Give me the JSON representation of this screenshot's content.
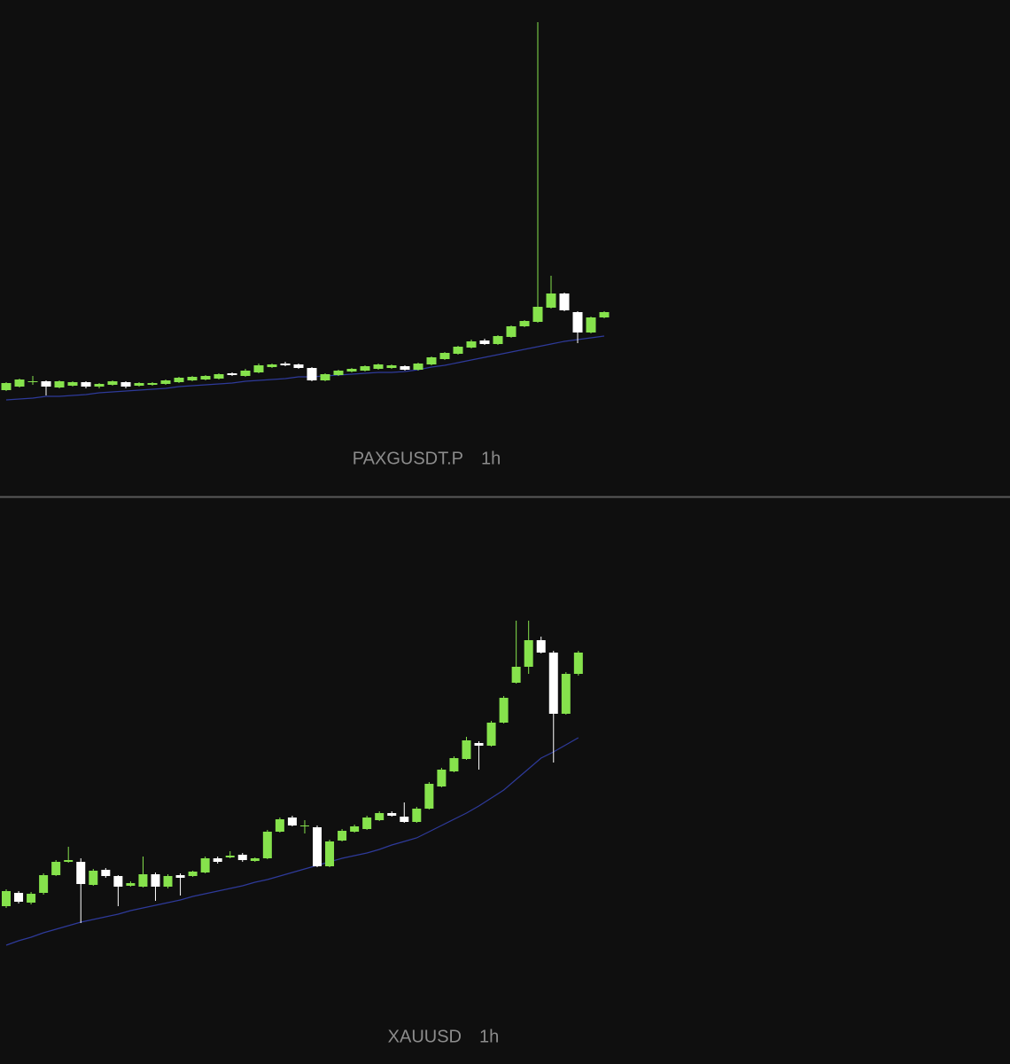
{
  "chart_data": [
    {
      "type": "candlestick",
      "title": "PAXGUSDT.P",
      "interval": "1h",
      "up_color": "#86e24c",
      "down_color": "#ffffff",
      "ma_color": "#2e3a9a",
      "ylim": [
        0,
        560
      ],
      "ohlc": [
        [
          120,
          129,
          119,
          128
        ],
        [
          124,
          133,
          123,
          132
        ],
        [
          130,
          136,
          126,
          130
        ],
        [
          130,
          131,
          114,
          124
        ],
        [
          123,
          131,
          122,
          130
        ],
        [
          125,
          130,
          124,
          129
        ],
        [
          129,
          130,
          122,
          124
        ],
        [
          124,
          128,
          122,
          127
        ],
        [
          126,
          131,
          125,
          130
        ],
        [
          129,
          130,
          122,
          124
        ],
        [
          125,
          129,
          124,
          128
        ],
        [
          126,
          129,
          125,
          128
        ],
        [
          127,
          132,
          126,
          131
        ],
        [
          129,
          135,
          128,
          134
        ],
        [
          131,
          136,
          130,
          135
        ],
        [
          132,
          137,
          131,
          136
        ],
        [
          133,
          139,
          132,
          138
        ],
        [
          139,
          140,
          136,
          137
        ],
        [
          136,
          144,
          135,
          142
        ],
        [
          140,
          150,
          139,
          148
        ],
        [
          146,
          150,
          145,
          149
        ],
        [
          150,
          152,
          147,
          148
        ],
        [
          149,
          150,
          144,
          145
        ],
        [
          145,
          146,
          130,
          131
        ],
        [
          131,
          139,
          130,
          138
        ],
        [
          137,
          143,
          136,
          142
        ],
        [
          141,
          145,
          140,
          144
        ],
        [
          142,
          148,
          141,
          147
        ],
        [
          144,
          150,
          143,
          149
        ],
        [
          145,
          149,
          144,
          148
        ],
        [
          147,
          148,
          142,
          143
        ],
        [
          143,
          151,
          142,
          150
        ],
        [
          149,
          158,
          148,
          157
        ],
        [
          155,
          163,
          154,
          162
        ],
        [
          161,
          170,
          160,
          169
        ],
        [
          168,
          177,
          167,
          175
        ],
        [
          176,
          178,
          171,
          172
        ],
        [
          172,
          182,
          171,
          181
        ],
        [
          180,
          193,
          179,
          192
        ],
        [
          192,
          199,
          191,
          198
        ],
        [
          197,
          535,
          196,
          214
        ],
        [
          213,
          249,
          212,
          229
        ],
        [
          229,
          230,
          209,
          210
        ],
        [
          208,
          209,
          173,
          185
        ],
        [
          185,
          203,
          184,
          202
        ],
        [
          202,
          209,
          201,
          208
        ]
      ],
      "ma": [
        109,
        110,
        111,
        113,
        113,
        114,
        115,
        117,
        118,
        119,
        120,
        121,
        122,
        124,
        125,
        126,
        127,
        128,
        130,
        131,
        132,
        133,
        135,
        135,
        136,
        137,
        138,
        139,
        140,
        140,
        141,
        143,
        146,
        148,
        151,
        154,
        157,
        160,
        163,
        166,
        169,
        172,
        175,
        177,
        179,
        181
      ]
    },
    {
      "type": "candlestick",
      "title": "XAUUSD",
      "interval": "1h",
      "up_color": "#86e24c",
      "down_color": "#ffffff",
      "ma_color": "#2e3a9a",
      "ylim": [
        0,
        638
      ],
      "ohlc": [
        [
          178,
          197,
          176,
          195
        ],
        [
          193,
          195,
          181,
          183
        ],
        [
          182,
          194,
          180,
          192
        ],
        [
          193,
          215,
          191,
          213
        ],
        [
          213,
          230,
          212,
          228
        ],
        [
          228,
          245,
          227,
          230
        ],
        [
          228,
          232,
          159,
          203
        ],
        [
          202,
          220,
          201,
          218
        ],
        [
          219,
          221,
          210,
          212
        ],
        [
          212,
          213,
          178,
          200
        ],
        [
          201,
          206,
          200,
          204
        ],
        [
          200,
          234,
          199,
          214
        ],
        [
          214,
          216,
          184,
          200
        ],
        [
          200,
          214,
          198,
          212
        ],
        [
          213,
          215,
          190,
          210
        ],
        [
          212,
          218,
          211,
          217
        ],
        [
          216,
          234,
          215,
          232
        ],
        [
          232,
          234,
          226,
          228
        ],
        [
          233,
          240,
          232,
          235
        ],
        [
          236,
          238,
          228,
          230
        ],
        [
          229,
          233,
          228,
          232
        ],
        [
          232,
          264,
          231,
          262
        ],
        [
          262,
          278,
          261,
          276
        ],
        [
          278,
          280,
          268,
          269
        ],
        [
          269,
          275,
          260,
          269
        ],
        [
          267,
          269,
          222,
          223
        ],
        [
          223,
          253,
          222,
          251
        ],
        [
          252,
          265,
          251,
          263
        ],
        [
          262,
          270,
          261,
          268
        ],
        [
          265,
          280,
          264,
          278
        ],
        [
          275,
          285,
          274,
          283
        ],
        [
          283,
          285,
          279,
          280
        ],
        [
          279,
          295,
          272,
          273
        ],
        [
          273,
          290,
          272,
          288
        ],
        [
          288,
          318,
          287,
          316
        ],
        [
          313,
          334,
          312,
          332
        ],
        [
          330,
          347,
          329,
          345
        ],
        [
          344,
          369,
          343,
          365
        ],
        [
          362,
          364,
          332,
          359
        ],
        [
          359,
          387,
          358,
          385
        ],
        [
          385,
          415,
          384,
          413
        ],
        [
          430,
          500,
          429,
          448
        ],
        [
          448,
          500,
          440,
          478
        ],
        [
          478,
          482,
          463,
          464
        ],
        [
          464,
          466,
          340,
          395
        ],
        [
          395,
          442,
          394,
          440
        ],
        [
          440,
          466,
          438,
          464
        ]
      ],
      "ma": [
        134,
        139,
        143,
        148,
        152,
        156,
        160,
        163,
        166,
        169,
        173,
        176,
        179,
        182,
        185,
        189,
        192,
        195,
        198,
        201,
        205,
        208,
        212,
        216,
        220,
        224,
        228,
        232,
        235,
        238,
        242,
        247,
        251,
        255,
        262,
        269,
        276,
        283,
        291,
        300,
        309,
        321,
        333,
        345,
        352,
        360,
        368
      ]
    }
  ]
}
